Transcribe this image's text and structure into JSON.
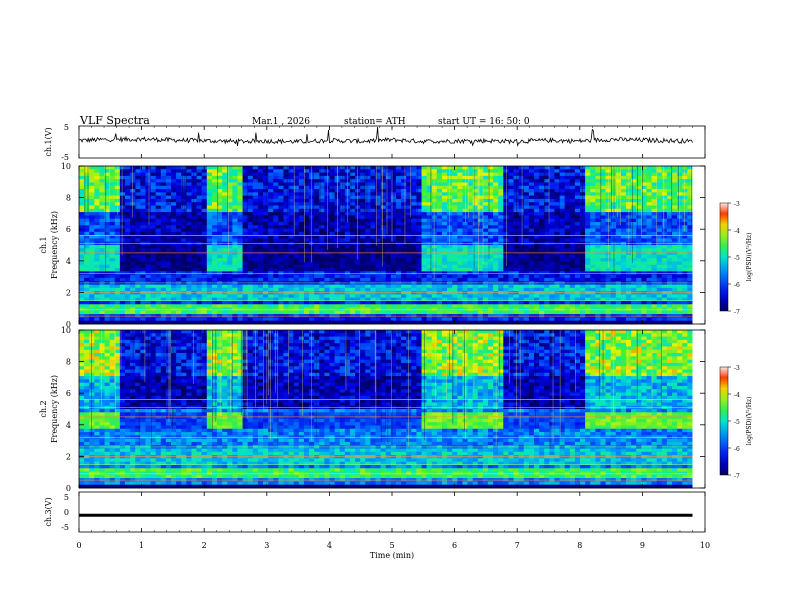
{
  "header": {
    "title": "VLF Spectra",
    "date": "Mar.1 , 2026",
    "station": "station= ATH",
    "start": "start UT = 16: 50: 0"
  },
  "chart_data": [
    {
      "type": "line",
      "name": "ch1-waveform",
      "ylabel": "ch.1(V)",
      "yticks": [
        "5",
        "-5"
      ],
      "ylim": [
        -5,
        5
      ],
      "xlim": [
        0,
        10
      ],
      "grid": false,
      "x": [
        0.0,
        0.5,
        1.0,
        1.5,
        2.0,
        2.5,
        3.0,
        3.5,
        4.0,
        4.5,
        5.0,
        5.5,
        6.0,
        6.5,
        7.0,
        7.5,
        8.0,
        8.5,
        9.0,
        9.5,
        9.8
      ],
      "y": [
        0.5,
        0.8,
        0.9,
        0.6,
        0.4,
        0.2,
        0.3,
        0.1,
        0.5,
        0.2,
        0.7,
        0.2,
        0.3,
        0.4,
        0.2,
        0.5,
        0.3,
        0.8,
        0.6,
        0.4,
        0.2
      ]
    },
    {
      "type": "heatmap",
      "name": "ch1-spectrogram",
      "ylabel": "ch.1\nFrequency (kHz)",
      "yticks": [
        "0",
        "2",
        "4",
        "6",
        "8",
        "10"
      ],
      "ylim": [
        0,
        10
      ],
      "xlim": [
        0,
        9.8
      ],
      "colorbar": {
        "label": "log(PSD)(V²/Hz)",
        "ticks": [
          "-3",
          "-4",
          "-5",
          "-6",
          "-7"
        ],
        "range": [
          -7,
          -3
        ]
      },
      "quiet_intervals_min": [
        [
          0.65,
          2.05
        ],
        [
          2.65,
          5.5
        ],
        [
          6.75,
          8.1
        ]
      ],
      "band_4khz_kHz": [
        3.4,
        4.9
      ],
      "band_4khz_level_active": -5.0,
      "band_4khz_level_quiet": -6.8,
      "background_level": -6.2,
      "high_freq_activity_level": -4.5
    },
    {
      "type": "heatmap",
      "name": "ch2-spectrogram",
      "ylabel": "ch.2\nFrequency (kHz)",
      "yticks": [
        "0",
        "2",
        "4",
        "6",
        "8",
        "10"
      ],
      "ylim": [
        0,
        10
      ],
      "xlim": [
        0,
        9.8
      ],
      "colorbar": {
        "label": "log(PSD)(V²/Hz)",
        "ticks": [
          "-3",
          "-4",
          "-5",
          "-6",
          "-7"
        ],
        "range": [
          -7,
          -3
        ]
      },
      "quiet_intervals_min": [
        [
          0.65,
          2.05
        ],
        [
          2.65,
          5.5
        ],
        [
          6.75,
          8.1
        ]
      ],
      "band_4khz_kHz": [
        3.8,
        4.8
      ],
      "band_4khz_level_active": -4.4,
      "band_4khz_level_quiet": -6.0,
      "background_level": -5.6,
      "high_freq_activity_level": -4.3
    },
    {
      "type": "line",
      "name": "ch3-waveform",
      "ylabel": "ch.3(V)",
      "yticks": [
        "5",
        "0",
        "-5"
      ],
      "ylim": [
        -5,
        5
      ],
      "xlim": [
        0,
        10
      ],
      "xlabel": "Time (min)",
      "xticks": [
        "0",
        "1",
        "2",
        "3",
        "4",
        "5",
        "6",
        "7",
        "8",
        "9",
        "10"
      ],
      "x": [
        0.0,
        9.8
      ],
      "y": [
        -0.8,
        -0.8
      ]
    }
  ]
}
